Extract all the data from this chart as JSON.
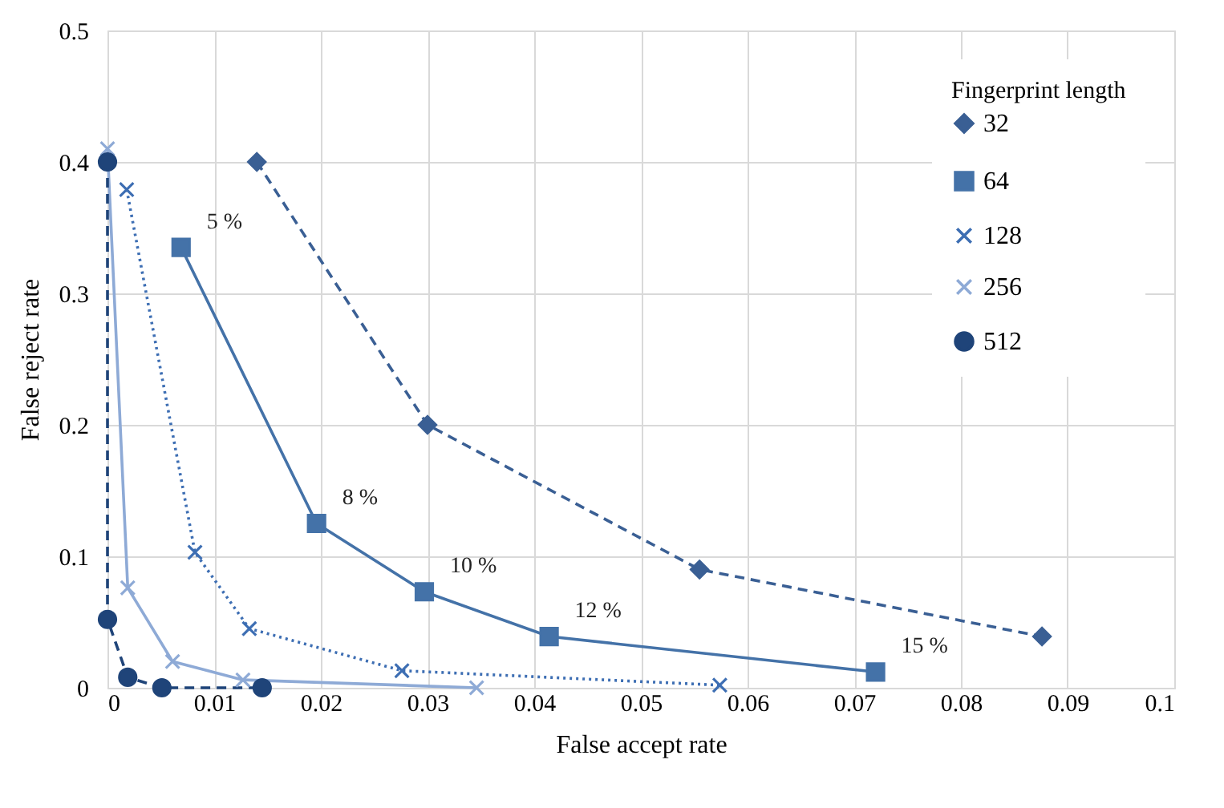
{
  "chart_data": {
    "type": "line",
    "xlabel": "False accept rate",
    "ylabel": "False reject rate",
    "legend_title": "Fingerprint length",
    "legend": "top right",
    "grid": true,
    "xlim": [
      0,
      0.1
    ],
    "xticks": [
      0,
      0.01,
      0.02,
      0.03,
      0.04,
      0.05,
      0.06,
      0.07,
      0.08,
      0.09,
      0.1
    ],
    "ylim": [
      0,
      0.5
    ],
    "yticks": [
      0,
      0.1,
      0.2,
      0.3,
      0.4,
      0.5
    ],
    "series": [
      {
        "name": "32",
        "color": "#3a5f94",
        "marker": "diamond",
        "line_style": "dashed",
        "x": [
          0.014,
          0.03,
          0.0555,
          0.0876
        ],
        "values": [
          0.4,
          0.2,
          0.09,
          0.039
        ]
      },
      {
        "name": "64",
        "color": "#4472a8",
        "marker": "square",
        "line_style": "solid",
        "x": [
          0.0069,
          0.0196,
          0.0297,
          0.0414,
          0.072
        ],
        "values": [
          0.335,
          0.125,
          0.073,
          0.039,
          0.012
        ]
      },
      {
        "name": "128",
        "color": "#3d6eb3",
        "marker": "cross",
        "line_style": "dotted",
        "x": [
          0.0018,
          0.0082,
          0.0133,
          0.0276,
          0.0574
        ],
        "values": [
          0.379,
          0.103,
          0.045,
          0.013,
          0.002
        ]
      },
      {
        "name": "256",
        "color": "#8eaad6",
        "marker": "cross",
        "line_style": "solid",
        "x": [
          0,
          0.0019,
          0.0061,
          0.0127,
          0.0346
        ],
        "values": [
          0.41,
          0.076,
          0.02,
          0.006,
          0
        ]
      },
      {
        "name": "512",
        "color": "#1f4479",
        "marker": "circle",
        "line_style": "dashed",
        "x": [
          0,
          0,
          0.0019,
          0.0051,
          0.0145
        ],
        "values": [
          0.4,
          0.052,
          0.008,
          0,
          0
        ]
      }
    ],
    "annotations": [
      {
        "text": "5 %",
        "x": 0.0069,
        "y": 0.335
      },
      {
        "text": "8 %",
        "x": 0.0196,
        "y": 0.125
      },
      {
        "text": "10 %",
        "x": 0.0297,
        "y": 0.073
      },
      {
        "text": "12 %",
        "x": 0.0414,
        "y": 0.039
      },
      {
        "text": "15 %",
        "x": 0.072,
        "y": 0.012
      }
    ]
  }
}
